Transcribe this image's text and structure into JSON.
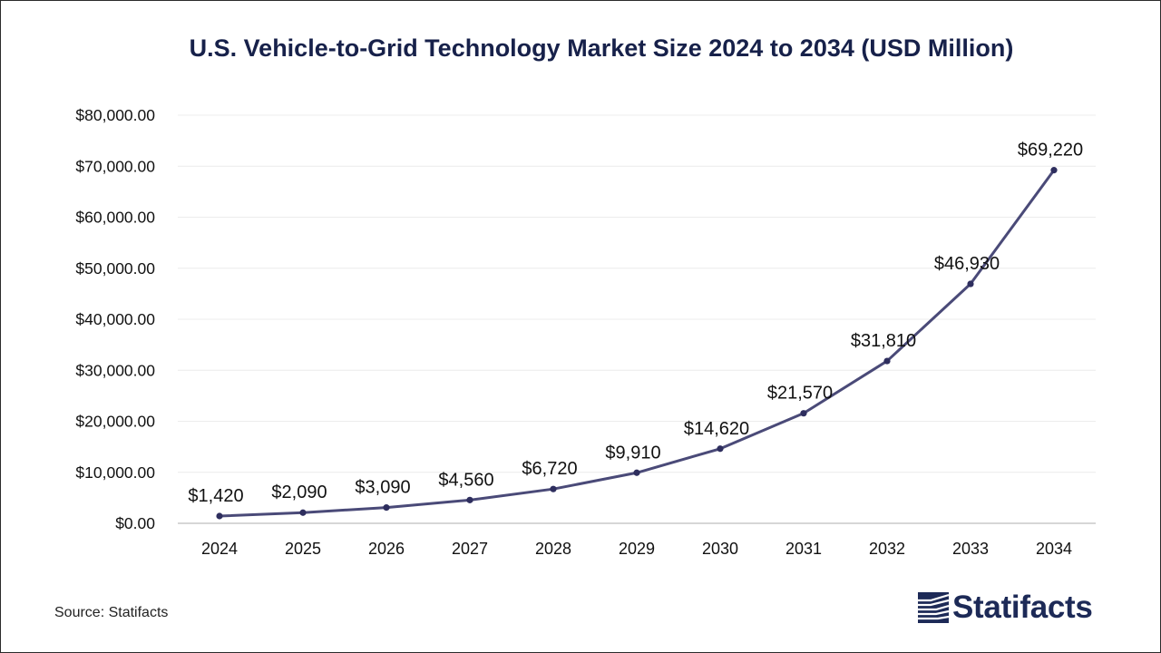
{
  "chart_data": {
    "type": "line",
    "title": "U.S. Vehicle-to-Grid Technology Market Size 2024 to 2034 (USD Million)",
    "xlabel": "",
    "ylabel": "",
    "categories": [
      "2024",
      "2025",
      "2026",
      "2027",
      "2028",
      "2029",
      "2030",
      "2031",
      "2032",
      "2033",
      "2034"
    ],
    "values": [
      1420,
      2090,
      3090,
      4560,
      6720,
      9910,
      14620,
      21570,
      31810,
      46930,
      69220
    ],
    "data_labels": [
      "$1,420",
      "$2,090",
      "$3,090",
      "$4,560",
      "$6,720",
      "$9,910",
      "$14,620",
      "$21,570",
      "$31,810",
      "$46,930",
      "$69,220"
    ],
    "y_ticks": [
      "$0.00",
      "$10,000.00",
      "$20,000.00",
      "$30,000.00",
      "$40,000.00",
      "$50,000.00",
      "$60,000.00",
      "$70,000.00",
      "$80,000.00"
    ],
    "ylim": [
      0,
      80000
    ],
    "grid": true,
    "legend": "none",
    "series_color": "#4a4a78"
  },
  "source": "Source: Statifacts",
  "brand": {
    "name": "Statifacts",
    "logo_icon": "statifacts-logo-icon",
    "color": "#1d2a57"
  }
}
